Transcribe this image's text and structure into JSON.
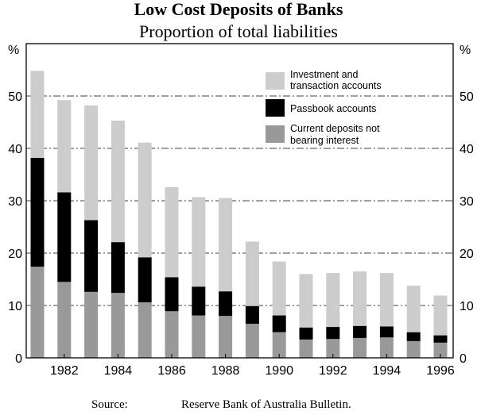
{
  "chart_data": {
    "type": "bar",
    "stacked": true,
    "title": "Low Cost Deposits of Banks",
    "subtitle": "Proportion of total liabilities",
    "y_unit_label_left": "%",
    "y_unit_label_right": "%",
    "ylim": [
      0,
      60
    ],
    "yticks": [
      0,
      10,
      20,
      30,
      40,
      50
    ],
    "grid": "dash-dot horizontal",
    "categories": [
      "1981",
      "1982",
      "1983",
      "1984",
      "1985",
      "1986",
      "1987",
      "1988",
      "1989",
      "1990",
      "1991",
      "1992",
      "1993",
      "1994",
      "1995",
      "1996"
    ],
    "x_tick_labels": [
      "1982",
      "1984",
      "1986",
      "1988",
      "1990",
      "1992",
      "1994",
      "1996"
    ],
    "series": [
      {
        "name": "Current deposits not bearing interest",
        "color": "#999999",
        "values": [
          17.4,
          14.5,
          12.6,
          12.4,
          10.6,
          8.9,
          8.1,
          8.0,
          6.5,
          4.9,
          3.5,
          3.6,
          3.8,
          3.9,
          3.2,
          2.9
        ]
      },
      {
        "name": "Passbook accounts",
        "color": "#000000",
        "values": [
          20.8,
          17.1,
          13.7,
          9.7,
          8.6,
          6.5,
          5.5,
          4.7,
          3.4,
          3.2,
          2.3,
          2.3,
          2.3,
          2.1,
          1.7,
          1.4
        ]
      },
      {
        "name": "Investment and transaction accounts",
        "color": "#cccccc",
        "values": [
          16.6,
          17.6,
          21.9,
          23.2,
          21.9,
          17.2,
          17.1,
          17.8,
          12.3,
          10.3,
          10.2,
          10.3,
          10.4,
          10.2,
          8.9,
          7.6
        ]
      }
    ],
    "legend": [
      {
        "line1": "Investment and",
        "line2": "transaction accounts",
        "color": "#cccccc"
      },
      {
        "line1": "Passbook accounts",
        "line2": "",
        "color": "#000000"
      },
      {
        "line1": "Current deposits not",
        "line2": "bearing interest",
        "color": "#999999"
      }
    ],
    "legend_position": "top-right",
    "source_label": "Source:",
    "source_text": "Reserve Bank of Australia Bulletin."
  }
}
